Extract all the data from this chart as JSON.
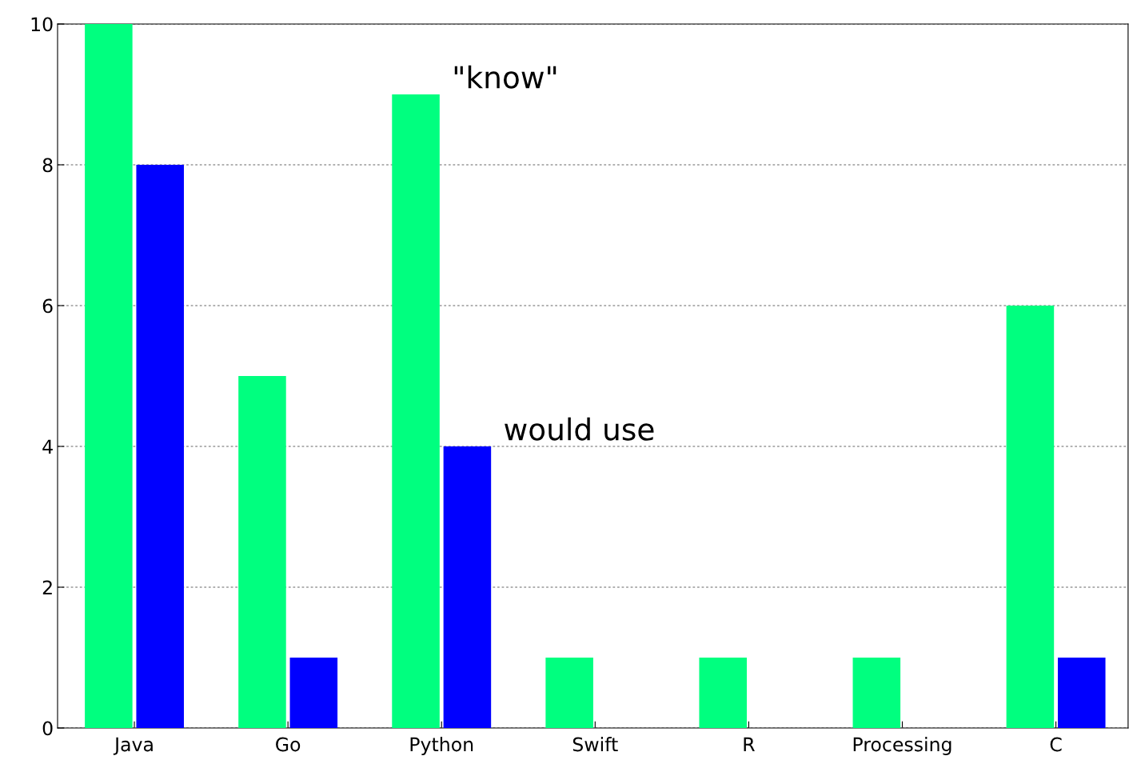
{
  "chart_data": {
    "type": "bar",
    "categories": [
      "Java",
      "Go",
      "Python",
      "Swift",
      "R",
      "Processing",
      "C"
    ],
    "series": [
      {
        "name": "\"know\"",
        "color": "#00ff7f",
        "values": [
          10,
          5,
          9,
          1,
          1,
          1,
          6
        ]
      },
      {
        "name": "would use",
        "color": "#0000ff",
        "values": [
          8,
          1,
          4,
          0,
          0,
          0,
          1
        ]
      }
    ],
    "ylim": [
      0,
      10
    ],
    "yticks": [
      0,
      2,
      4,
      6,
      8,
      10
    ],
    "grid": "y",
    "legend": false
  }
}
